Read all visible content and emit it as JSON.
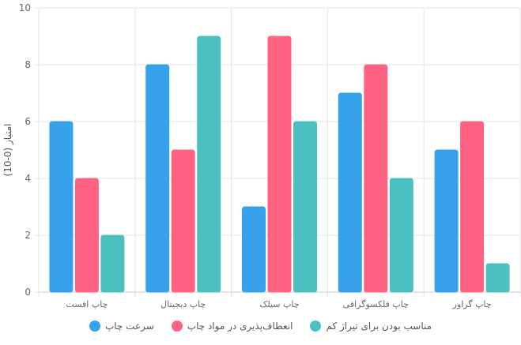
{
  "chart_data": {
    "type": "bar",
    "categories": [
      "چاپ افست",
      "چاپ دیجیتال",
      "چاپ سیلک",
      "چاپ فلکسوگرافی",
      "چاپ گراور"
    ],
    "series": [
      {
        "name": "سرعت چاپ",
        "color": "#36a2eb",
        "values": [
          6,
          8,
          3,
          7,
          5
        ]
      },
      {
        "name": "انعطاف‌پذیری در مواد چاپ",
        "color": "#ff6384",
        "values": [
          4,
          5,
          9,
          8,
          6
        ]
      },
      {
        "name": "مناسب بودن برای تیراژ کم",
        "color": "#4bc0c0",
        "values": [
          2,
          9,
          6,
          4,
          1
        ]
      }
    ],
    "ylabel": "امتیاز (0-10)",
    "xlabel": "",
    "ylim": [
      0,
      10
    ],
    "yticks": [
      "0",
      "2",
      "4",
      "6",
      "8",
      "10"
    ],
    "grid": true,
    "legend_position": "bottom"
  }
}
